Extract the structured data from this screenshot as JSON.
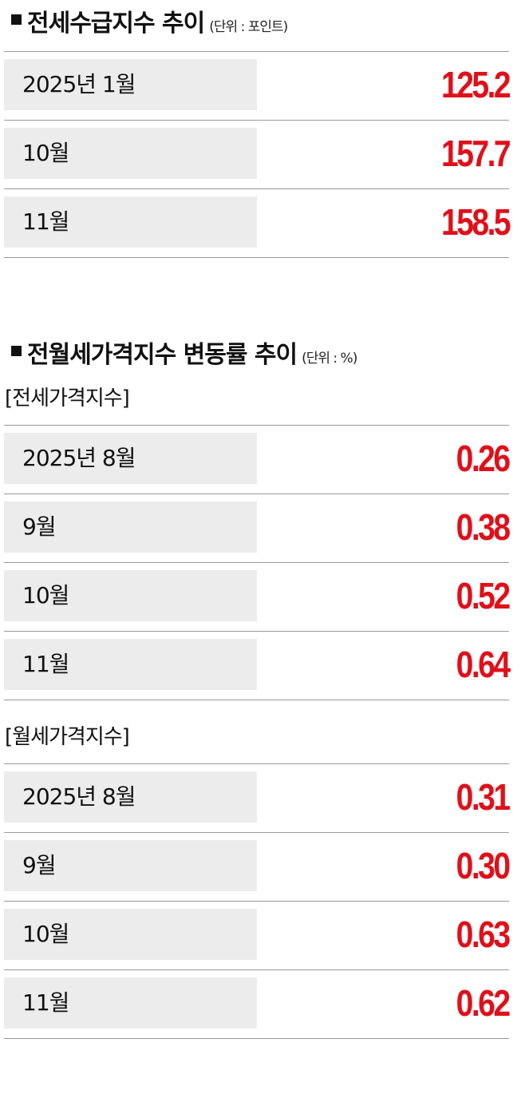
{
  "sections": [
    {
      "title": "전세수급지수 추이",
      "unit": "(단위 : 포인트)",
      "groups": [
        {
          "rows": [
            [
              "2025년 1월",
              "125.2"
            ],
            [
              "10월",
              "157.7"
            ],
            [
              "11월",
              "158.5"
            ]
          ]
        }
      ]
    },
    {
      "title": "전월세가격지수 변동률 추이",
      "unit": "(단위 : %)",
      "groups": [
        {
          "label": "[전세가격지수]",
          "rows": [
            [
              "2025년 8월",
              "0.26"
            ],
            [
              "9월",
              "0.38"
            ],
            [
              "10월",
              "0.52"
            ],
            [
              "11월",
              "0.64"
            ]
          ]
        },
        {
          "label": "[월세가격지수]",
          "rows": [
            [
              "2025년 8월",
              "0.31"
            ],
            [
              "9월",
              "0.30"
            ],
            [
              "10월",
              "0.63"
            ],
            [
              "11월",
              "0.62"
            ]
          ]
        }
      ]
    }
  ]
}
